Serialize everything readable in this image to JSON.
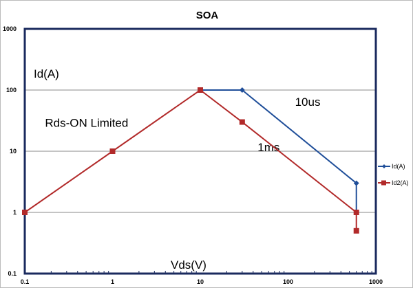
{
  "chart_data": {
    "type": "line",
    "title": "SOA",
    "xlabel": "Vds(V)",
    "ylabel": "Id(A)",
    "xscale": "log",
    "yscale": "log",
    "xlim": [
      0.1,
      1000
    ],
    "ylim": [
      0.1,
      1000
    ],
    "x_ticks": [
      "0.1",
      "1",
      "10",
      "100",
      "1000"
    ],
    "y_ticks": [
      "0.1",
      "1",
      "10",
      "100",
      "1000"
    ],
    "grid": true,
    "legend_position": "right",
    "series": [
      {
        "name": "Id(A)",
        "color": "#1f4e99",
        "marker": "diamond",
        "points": [
          [
            10,
            100
          ],
          [
            30,
            100
          ],
          [
            600,
            3
          ],
          [
            600,
            1
          ]
        ]
      },
      {
        "name": "Id2(A)",
        "color": "#b22a2a",
        "marker": "square",
        "points": [
          [
            0.1,
            1
          ],
          [
            1,
            10
          ],
          [
            10,
            100
          ],
          [
            30,
            30
          ],
          [
            600,
            1
          ],
          [
            600,
            0.5
          ]
        ]
      }
    ],
    "annotations": [
      {
        "text": "Rds-ON Limited",
        "x": 0.17,
        "y": 25
      },
      {
        "text": "10us",
        "x": 120,
        "y": 55
      },
      {
        "text": "1ms",
        "x": 45,
        "y": 10
      }
    ]
  }
}
